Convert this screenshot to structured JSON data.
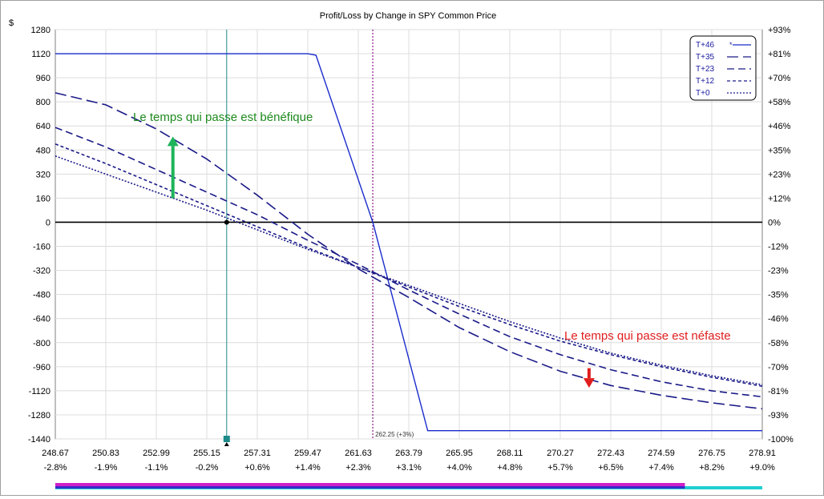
{
  "chart_data": {
    "type": "line",
    "title": "Profit/Loss by Change in SPY Common Price",
    "ylabel": "$",
    "ylim": [
      -1440,
      1280
    ],
    "xlim": [
      248.67,
      278.91
    ],
    "y_ticks": [
      "1280",
      "1120",
      "960",
      "800",
      "640",
      "480",
      "320",
      "160",
      "0",
      "-160",
      "-320",
      "-480",
      "-640",
      "-800",
      "-960",
      "-1120",
      "-1280",
      "-1440"
    ],
    "y_right_ticks": [
      "+93%",
      "+81%",
      "+70%",
      "+58%",
      "+46%",
      "+35%",
      "+23%",
      "+12%",
      "0%",
      "-12%",
      "-23%",
      "-35%",
      "-46%",
      "-58%",
      "-70%",
      "-81%",
      "-93%",
      "-100%"
    ],
    "x_ticks": [
      "248.67",
      "250.83",
      "252.99",
      "255.15",
      "257.31",
      "259.47",
      "261.63",
      "263.79",
      "265.95",
      "268.11",
      "270.27",
      "272.43",
      "274.59",
      "276.75",
      "278.91"
    ],
    "x_pct_ticks": [
      "-2.8%",
      "-1.9%",
      "-1.1%",
      "-0.2%",
      "+0.6%",
      "+1.4%",
      "+2.3%",
      "+3.1%",
      "+4.0%",
      "+4.8%",
      "+5.7%",
      "+6.5%",
      "+7.4%",
      "+8.2%",
      "+9.0%"
    ],
    "current_price": 256.0,
    "current_price_value": 0,
    "breakeven": 262.25,
    "breakeven_label": "262.25 (+3%)",
    "legend_position": "top-right",
    "series": [
      {
        "name": "T+46",
        "legend_marker": "*",
        "color": "#1a2ccc",
        "dash": "solid",
        "x": [
          248.67,
          259.47,
          259.82,
          262.25,
          264.6,
          278.91
        ],
        "y": [
          1120,
          1120,
          1110,
          0,
          -1385,
          -1385
        ]
      },
      {
        "name": "T+35",
        "color": "#1a1a88",
        "dash": "long",
        "x": [
          248.67,
          250.83,
          252.99,
          255.15,
          257.31,
          259.47,
          261.63,
          263.79,
          265.95,
          268.11,
          270.27,
          272.43,
          274.59,
          276.75,
          278.91
        ],
        "y": [
          860,
          780,
          620,
          420,
          180,
          -80,
          -310,
          -500,
          -700,
          -860,
          -990,
          -1085,
          -1150,
          -1200,
          -1240
        ]
      },
      {
        "name": "T+23",
        "color": "#1a1a88",
        "dash": "medium",
        "x": [
          248.67,
          250.83,
          252.99,
          255.15,
          257.31,
          259.47,
          261.63,
          263.79,
          265.95,
          268.11,
          270.27,
          272.43,
          274.59,
          276.75,
          278.91
        ],
        "y": [
          630,
          500,
          350,
          200,
          50,
          -120,
          -280,
          -450,
          -610,
          -760,
          -880,
          -980,
          -1060,
          -1120,
          -1160
        ]
      },
      {
        "name": "T+12",
        "color": "#1a1a88",
        "dash": "short",
        "x": [
          248.67,
          250.83,
          252.99,
          255.15,
          257.31,
          259.47,
          261.63,
          263.79,
          265.95,
          268.11,
          270.27,
          272.43,
          274.59,
          276.75,
          278.91
        ],
        "y": [
          520,
          390,
          250,
          110,
          -30,
          -170,
          -300,
          -430,
          -560,
          -680,
          -790,
          -880,
          -960,
          -1030,
          -1090
        ]
      },
      {
        "name": "T+0",
        "color": "#1a1a88",
        "dash": "dotted",
        "x": [
          248.67,
          250.83,
          252.99,
          255.15,
          257.31,
          259.47,
          261.63,
          263.79,
          265.95,
          268.11,
          270.27,
          272.43,
          274.59,
          276.75,
          278.91
        ],
        "y": [
          440,
          320,
          200,
          80,
          -50,
          -180,
          -300,
          -420,
          -540,
          -660,
          -770,
          -870,
          -950,
          -1020,
          -1080
        ]
      }
    ],
    "annotations": [
      {
        "text": "Le temps qui passe est bénéfique",
        "color": "#1e8a1e"
      },
      {
        "text": "Le temps qui passe est néfaste",
        "color": "#e01e1e"
      }
    ],
    "arrows": [
      {
        "direction": "up",
        "color": "#1eb45a",
        "x": 253.7,
        "y_from": 160,
        "y_to": 570
      },
      {
        "direction": "down",
        "color": "#e01e1e",
        "x": 271.5,
        "y_from": -970,
        "y_to": -1100
      }
    ],
    "bottom_bars": [
      {
        "color": "#d020c8",
        "from": 248.67,
        "to": 275.6
      },
      {
        "color": "#20d0d0",
        "from": 248.67,
        "to": 278.91
      }
    ]
  }
}
